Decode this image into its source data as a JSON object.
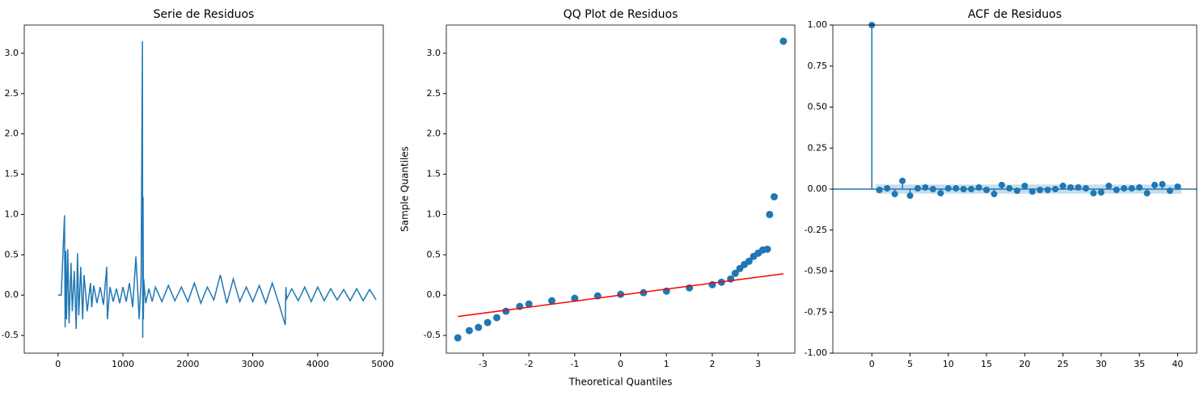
{
  "chart_data": [
    {
      "type": "line",
      "title": "Serie de Residuos",
      "xlim": [
        -520,
        5010
      ],
      "ylim": [
        -0.72,
        3.35
      ],
      "xticks": [
        0,
        1000,
        2000,
        3000,
        4000,
        5000
      ],
      "yticks": [
        -0.5,
        {
          "value": 0,
          "label": "0.0"
        },
        0.5,
        {
          "value": 1,
          "label": "1.0"
        },
        1.5,
        {
          "value": 2,
          "label": "2.0"
        },
        2.5,
        {
          "value": 3,
          "label": "3.0"
        }
      ],
      "series": [
        {
          "color": "#1f77b4",
          "mode": "line",
          "x": [
            0,
            50,
            100,
            110,
            120,
            130,
            150,
            170,
            200,
            220,
            250,
            280,
            300,
            320,
            350,
            380,
            400,
            450,
            500,
            520,
            550,
            600,
            650,
            700,
            750,
            760,
            800,
            850,
            900,
            950,
            1000,
            1050,
            1100,
            1150,
            1200,
            1250,
            1280,
            1300,
            1305,
            1310,
            1315,
            1320,
            1350,
            1400,
            1450,
            1500,
            1600,
            1700,
            1800,
            1900,
            2000,
            2100,
            2200,
            2300,
            2400,
            2500,
            2600,
            2700,
            2800,
            2900,
            3000,
            3100,
            3200,
            3300,
            3400,
            3500,
            3510,
            3520,
            3600,
            3700,
            3800,
            3900,
            4000,
            4100,
            4200,
            4300,
            4400,
            4500,
            4600,
            4700,
            4800,
            4900
          ],
          "values": [
            0,
            0,
            0.99,
            -0.4,
            0.55,
            -0.3,
            0.57,
            -0.35,
            0.4,
            -0.2,
            0.3,
            -0.42,
            0.52,
            -0.25,
            0.35,
            -0.3,
            0.25,
            -0.2,
            0.15,
            -0.15,
            0.12,
            -0.1,
            0.1,
            -0.12,
            0.35,
            -0.3,
            0.1,
            -0.08,
            0.08,
            -0.1,
            0.1,
            -0.08,
            0.15,
            -0.15,
            0.48,
            -0.3,
            0.2,
            3.15,
            -0.53,
            1.22,
            -0.3,
            0.2,
            -0.1,
            0.08,
            -0.08,
            0.1,
            -0.08,
            0.12,
            -0.07,
            0.1,
            -0.08,
            0.15,
            -0.1,
            0.1,
            -0.06,
            0.25,
            -0.1,
            0.2,
            -0.08,
            0.1,
            -0.08,
            0.12,
            -0.1,
            0.15,
            -0.1,
            -0.37,
            0.1,
            -0.05,
            0.08,
            -0.07,
            0.1,
            -0.08,
            0.1,
            -0.07,
            0.08,
            -0.06,
            0.07,
            -0.07,
            0.08,
            -0.07,
            0.07,
            -0.06
          ]
        }
      ]
    },
    {
      "type": "scatter",
      "title": "QQ Plot de Residuos",
      "x_label": "Theoretical Quantiles",
      "y_label": "Sample Quantiles",
      "xlim": [
        -3.8,
        3.8
      ],
      "ylim": [
        -0.72,
        3.35
      ],
      "xticks": [
        -3,
        -2,
        -1,
        0,
        1,
        2,
        3
      ],
      "yticks": [
        -0.5,
        {
          "value": 0,
          "label": "0.0"
        },
        0.5,
        {
          "value": 1,
          "label": "1.0"
        },
        1.5,
        {
          "value": 2,
          "label": "2.0"
        },
        2.5,
        {
          "value": 3,
          "label": "3.0"
        }
      ],
      "series": [
        {
          "color": "#1f77b4",
          "mode": "markers",
          "x": [
            -3.55,
            -3.3,
            -3.1,
            -2.9,
            -2.7,
            -2.5,
            -2.2,
            -2,
            -1.5,
            -1,
            -0.5,
            0,
            0.5,
            1,
            1.5,
            2,
            2.2,
            2.4,
            2.5,
            2.6,
            2.7,
            2.8,
            2.9,
            3.0,
            3.1,
            3.2,
            3.25,
            3.35,
            3.55
          ],
          "values": [
            -0.53,
            -0.44,
            -0.4,
            -0.34,
            -0.28,
            -0.2,
            -0.14,
            -0.11,
            -0.07,
            -0.04,
            -0.01,
            0.01,
            0.03,
            0.05,
            0.09,
            0.13,
            0.16,
            0.2,
            0.27,
            0.33,
            0.38,
            0.42,
            0.48,
            0.52,
            0.56,
            0.57,
            1.0,
            1.22,
            3.15
          ]
        },
        {
          "color": "#ff0000",
          "mode": "line",
          "x": [
            -3.55,
            3.55
          ],
          "values": [
            -0.265,
            0.265
          ]
        }
      ]
    },
    {
      "type": "stem",
      "title": "ACF de Residuos",
      "xlim": [
        -5.1,
        42.5
      ],
      "ylim": [
        -1,
        1
      ],
      "xticks": [
        0,
        5,
        10,
        15,
        20,
        25,
        30,
        35,
        40
      ],
      "yticks": [
        {
          "value": -1,
          "label": "-1.00"
        },
        {
          "value": -0.75,
          "label": "-0.75"
        },
        {
          "value": -0.5,
          "label": "-0.50"
        },
        {
          "value": -0.25,
          "label": "-0.25"
        },
        {
          "value": 0,
          "label": "0.00"
        },
        {
          "value": 0.25,
          "label": "0.25"
        },
        {
          "value": 0.5,
          "label": "0.50"
        },
        {
          "value": 0.75,
          "label": "0.75"
        },
        {
          "value": 1,
          "label": "1.00"
        }
      ],
      "confidence": 0.028,
      "series": [
        {
          "color": "#1f77b4",
          "mode": "stem",
          "x": [
            0,
            1,
            2,
            3,
            4,
            5,
            6,
            7,
            8,
            9,
            10,
            11,
            12,
            13,
            14,
            15,
            16,
            17,
            18,
            19,
            20,
            21,
            22,
            23,
            24,
            25,
            26,
            27,
            28,
            29,
            30,
            31,
            32,
            33,
            34,
            35,
            36,
            37,
            38,
            39,
            40
          ],
          "values": [
            1,
            -0.005,
            0.005,
            -0.03,
            0.05,
            -0.04,
            0.005,
            0.01,
            0.0,
            -0.025,
            0.005,
            0.005,
            0.0,
            0.0,
            0.01,
            -0.005,
            -0.03,
            0.025,
            0.005,
            -0.01,
            0.02,
            -0.015,
            -0.005,
            -0.005,
            0.0,
            0.02,
            0.01,
            0.01,
            0.005,
            -0.025,
            -0.02,
            0.02,
            -0.005,
            0.005,
            0.005,
            0.01,
            -0.025,
            0.025,
            0.03,
            -0.01,
            0.015
          ]
        }
      ]
    }
  ]
}
